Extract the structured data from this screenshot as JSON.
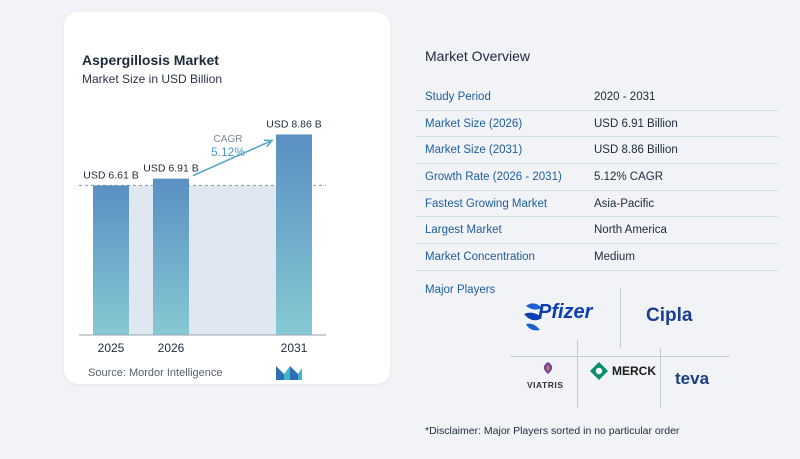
{
  "chart_data": {
    "type": "bar",
    "title": "Aspergillosis Market",
    "subtitle": "Market Size in USD Billion",
    "categories": [
      "2025",
      "2026",
      "2031"
    ],
    "values": [
      6.61,
      6.91,
      8.86
    ],
    "value_labels": [
      "USD 6.61 B",
      "USD 6.91 B",
      "USD 8.86 B"
    ],
    "cagr_label": "CAGR",
    "cagr_value": "5.12%",
    "ylim": [
      0,
      9.5
    ],
    "grid": false,
    "colors": {
      "bar_top": "#5b8fc2",
      "bar_bottom": "#86c9d3",
      "band": "#dfe8f1",
      "arrow": "#5aa8c9",
      "cagr": "#4d98c8"
    }
  },
  "source": "Source:  Mordor Intelligence",
  "overview": {
    "title": "Market Overview",
    "rows": [
      {
        "key": "Study Period",
        "value": "2020 - 2031"
      },
      {
        "key": "Market Size (2026)",
        "value": "USD 6.91 Billion"
      },
      {
        "key": "Market Size (2031)",
        "value": "USD 8.86 Billion"
      },
      {
        "key": "Growth Rate (2026 - 2031)",
        "value": "5.12% CAGR"
      },
      {
        "key": "Fastest Growing Market",
        "value": "Asia-Pacific"
      },
      {
        "key": "Largest Market",
        "value": "North America"
      },
      {
        "key": "Market Concentration",
        "value": "Medium"
      }
    ]
  },
  "players": {
    "title": "Major Players",
    "names": [
      "Pfizer",
      "Cipla",
      "VIATRIS",
      "MERCK",
      "teva"
    ]
  },
  "disclaimer": "*Disclaimer: Major Players sorted in no particular order"
}
